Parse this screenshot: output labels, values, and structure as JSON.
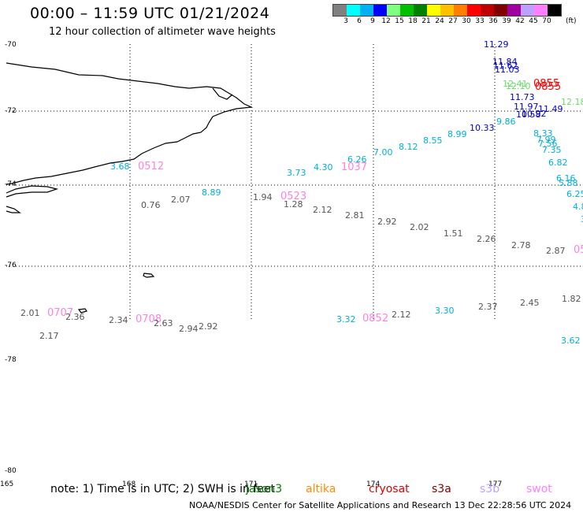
{
  "title": "00:00 – 11:59 UTC 01/21/2024",
  "subtitle": "12 hour collection of altimeter wave heights",
  "legend": {
    "colors": [
      "#808080",
      "#00ffff",
      "#00b0f0",
      "#0000ff",
      "#80ff80",
      "#00c000",
      "#008000",
      "#ffff00",
      "#ffc000",
      "#ff8000",
      "#ff0000",
      "#c00000",
      "#800000",
      "#a000a0",
      "#c0a0ff",
      "#ff80ff",
      "#000000"
    ],
    "labels": [
      "3",
      "6",
      "9",
      "12",
      "15",
      "18",
      "21",
      "24",
      "27",
      "30",
      "33",
      "36",
      "39",
      "42",
      "45",
      "70"
    ],
    "unit": "(ft)"
  },
  "lat_labels": [
    "-70",
    "-72",
    "-74",
    "-76",
    "-78",
    "-80"
  ],
  "lon_labels": [
    "165",
    "168",
    "171",
    "174",
    "177"
  ],
  "note": "note: 1) Time is in UTC; 2) SWH is in feet",
  "satellites": [
    {
      "name": "jason3",
      "color": "#008000"
    },
    {
      "name": "altika",
      "color": "#ff8c00"
    },
    {
      "name": "cryosat",
      "color": "#e00000"
    },
    {
      "name": "s3a",
      "color": "#800000"
    },
    {
      "name": "s3b",
      "color": "#c0a0ff"
    },
    {
      "name": "swot",
      "color": "#ff80ff"
    }
  ],
  "footer": "NOAA/NESDIS Center for Satellite Applications and Research    13 Dec 22:28:56 UTC 2024",
  "observations": [
    {
      "v": "11.29",
      "c": "#0000cc"
    },
    {
      "v": "11.84",
      "c": "#0000cc"
    },
    {
      "v": "11.62",
      "c": "#0000cc"
    },
    {
      "v": "11.03",
      "c": "#0000cc"
    },
    {
      "v": "12.41",
      "c": "#66dd66"
    },
    {
      "v": "12.10",
      "c": "#66dd66"
    },
    {
      "v": "0855",
      "c": "#ff0000"
    },
    {
      "v": "0855",
      "c": "#ff0000"
    },
    {
      "v": "11.73",
      "c": "#0000cc"
    },
    {
      "v": "12.18",
      "c": "#66dd66"
    },
    {
      "v": "11.97",
      "c": "#0000cc"
    },
    {
      "v": "11.49",
      "c": "#0000cc"
    },
    {
      "v": "10.58",
      "c": "#0000cc"
    },
    {
      "v": "10.92",
      "c": "#0000cc"
    },
    {
      "v": "9.86",
      "c": "#00b0d8"
    },
    {
      "v": "10.33",
      "c": "#0000cc"
    },
    {
      "v": "8.99",
      "c": "#00b0d8"
    },
    {
      "v": "8.55",
      "c": "#00b0d8"
    },
    {
      "v": "8.12",
      "c": "#00b0d8"
    },
    {
      "v": "7.00",
      "c": "#00b0d8"
    },
    {
      "v": "6.26",
      "c": "#00b0d8"
    },
    {
      "v": "1037",
      "c": "#ff80e0"
    },
    {
      "v": "4.30",
      "c": "#00b0d8"
    },
    {
      "v": "3.73",
      "c": "#00b0d8"
    },
    {
      "v": "8.33",
      "c": "#00b0d8"
    },
    {
      "v": "7.99",
      "c": "#00b0d8"
    },
    {
      "v": "7.56",
      "c": "#00b0d8"
    },
    {
      "v": "7.35",
      "c": "#00b0d8"
    },
    {
      "v": "6.82",
      "c": "#00b0d8"
    },
    {
      "v": "6.16",
      "c": "#00b0d8"
    },
    {
      "v": "5.88",
      "c": "#00b0d8"
    },
    {
      "v": "6.25",
      "c": "#00b0d8"
    },
    {
      "v": "4.8",
      "c": "#00b0d8"
    },
    {
      "v": "3.",
      "c": "#00b0d8"
    },
    {
      "v": "3.68",
      "c": "#00b0d8"
    },
    {
      "v": "0512",
      "c": "#ff80e0"
    },
    {
      "v": "8.89",
      "c": "#00b0d8"
    },
    {
      "v": "0.76",
      "c": "#555555"
    },
    {
      "v": "2.07",
      "c": "#555555"
    },
    {
      "v": "1.94",
      "c": "#555555"
    },
    {
      "v": "0523",
      "c": "#ff80e0"
    },
    {
      "v": "1.28",
      "c": "#555555"
    },
    {
      "v": "2.12",
      "c": "#555555"
    },
    {
      "v": "2.81",
      "c": "#555555"
    },
    {
      "v": "2.92",
      "c": "#555555"
    },
    {
      "v": "2.02",
      "c": "#555555"
    },
    {
      "v": "1.51",
      "c": "#555555"
    },
    {
      "v": "2.26",
      "c": "#555555"
    },
    {
      "v": "2.78",
      "c": "#555555"
    },
    {
      "v": "2.87",
      "c": "#555555"
    },
    {
      "v": "05",
      "c": "#ff80e0"
    },
    {
      "v": "2.01",
      "c": "#555555"
    },
    {
      "v": "0707",
      "c": "#ff80e0"
    },
    {
      "v": "2.36",
      "c": "#555555"
    },
    {
      "v": "2.17",
      "c": "#555555"
    },
    {
      "v": "2.34",
      "c": "#555555"
    },
    {
      "v": "0708",
      "c": "#ff80e0"
    },
    {
      "v": "2.63",
      "c": "#555555"
    },
    {
      "v": "2.94",
      "c": "#555555"
    },
    {
      "v": "2.92",
      "c": "#555555"
    },
    {
      "v": "3.32",
      "c": "#00b0d8"
    },
    {
      "v": "0852",
      "c": "#ff80e0"
    },
    {
      "v": "2.12",
      "c": "#555555"
    },
    {
      "v": "3.30",
      "c": "#00b0d8"
    },
    {
      "v": "2.37",
      "c": "#555555"
    },
    {
      "v": "2.45",
      "c": "#555555"
    },
    {
      "v": "1.82",
      "c": "#555555"
    },
    {
      "v": "3.62",
      "c": "#00b0d8"
    }
  ]
}
